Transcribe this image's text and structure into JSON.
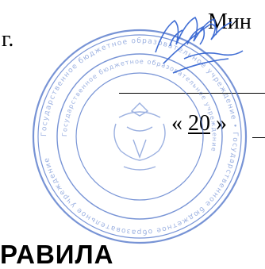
{
  "header": {
    "ministry_fragment": "Мин",
    "city_abbrev": "г."
  },
  "date": {
    "open_quote": "«",
    "day": "20",
    "close_quote": "»"
  },
  "section_heading": "РАВИЛА",
  "stamp": {
    "ink_color": "#4a70c8",
    "signature_color": "#2d5fd0",
    "inner_text": "Государственное бюджетное образовательное учреждение"
  }
}
